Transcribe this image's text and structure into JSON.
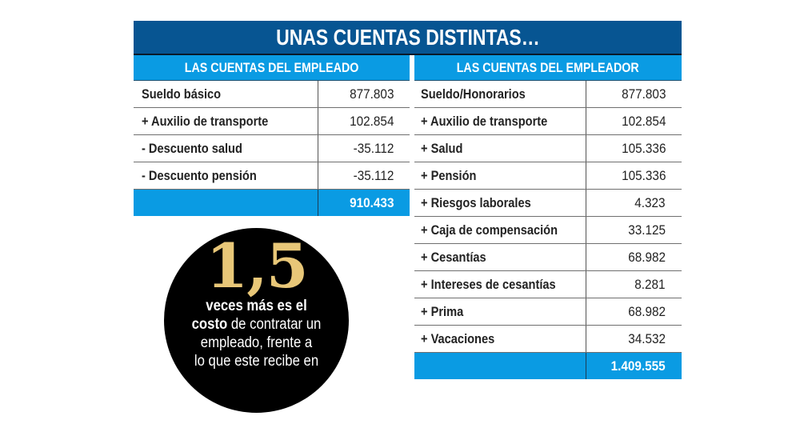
{
  "title": "UNAS CUENTAS DISTINTAS…",
  "colors": {
    "title_band": "#075592",
    "header": "#0a9be3",
    "circle": "#000000",
    "highlight": "#e8c778"
  },
  "employee_table": {
    "header": "LAS CUENTAS DEL EMPLEADO",
    "rows": [
      {
        "label": "Sueldo básico",
        "value": "877.803"
      },
      {
        "label": "+ Auxilio de transporte",
        "value": "102.854"
      },
      {
        "label": "- Descuento salud",
        "value": "-35.112"
      },
      {
        "label": "- Descuento pensión",
        "value": "-35.112"
      }
    ],
    "total": "910.433"
  },
  "employer_table": {
    "header": "LAS CUENTAS DEL EMPLEADOR",
    "rows": [
      {
        "label": "Sueldo/Honorarios",
        "value": "877.803"
      },
      {
        "label": "+ Auxilio de transporte",
        "value": "102.854"
      },
      {
        "label": "+ Salud",
        "value": "105.336"
      },
      {
        "label": "+ Pensión",
        "value": "105.336"
      },
      {
        "label": "+ Riesgos laborales",
        "value": "4.323"
      },
      {
        "label": "+ Caja de compensación",
        "value": "33.125"
      },
      {
        "label": "+ Cesantías",
        "value": "68.982"
      },
      {
        "label": "+ Intereses de cesantías",
        "value": "8.281"
      },
      {
        "label": "+ Prima",
        "value": "68.982"
      },
      {
        "label": "+ Vacaciones",
        "value": "34.532"
      }
    ],
    "total": "1.409.555"
  },
  "callout": {
    "number": "1,5",
    "line1": "veces más es el",
    "line2_bold": "costo",
    "line2_rest": " de contratar un",
    "line3": "empleado, frente a",
    "line4": "lo que este recibe en"
  }
}
